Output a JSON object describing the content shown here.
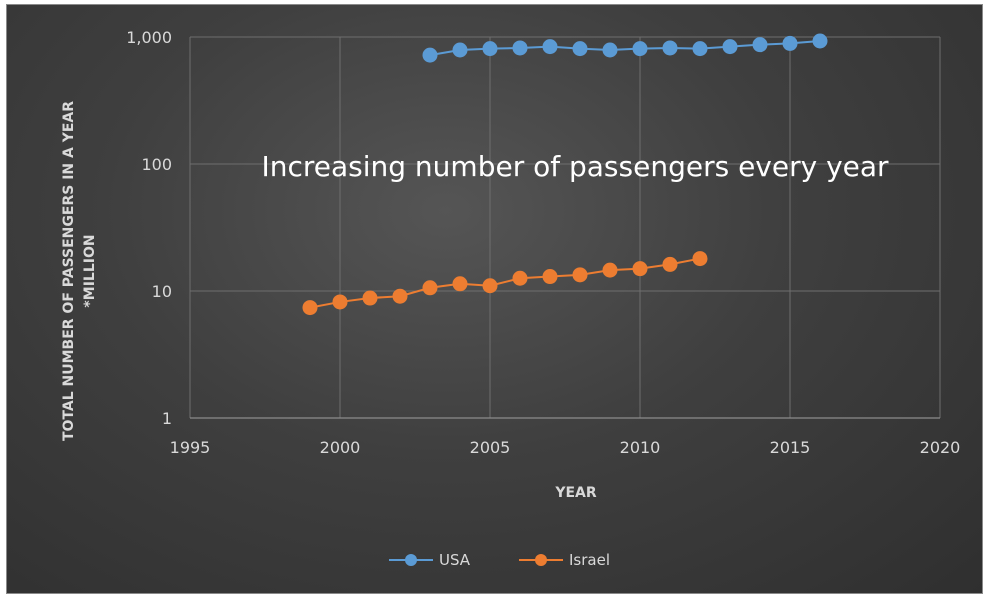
{
  "chart_data": {
    "type": "scatter",
    "xlabel": "YEAR",
    "ylabel_line1": "TOTAL NUMBER OF PASSENGERS IN A YEAR",
    "ylabel_line2": "*MILLION",
    "annotation": "Increasing number of passengers  every year",
    "xlim": [
      1995,
      2020
    ],
    "ylim": [
      1,
      1000
    ],
    "y_scale": "log",
    "grid": true,
    "legend_position": "bottom",
    "x_ticks": [
      "1995",
      "2000",
      "2005",
      "2010",
      "2015",
      "2020"
    ],
    "y_ticks": [
      "1",
      "10",
      "100",
      "1,000"
    ],
    "series": [
      {
        "name": "USA",
        "color": "#5b9bd5",
        "x": [
          2003,
          2004,
          2005,
          2006,
          2007,
          2008,
          2009,
          2010,
          2011,
          2012,
          2013,
          2014,
          2015,
          2016
        ],
        "y": [
          720,
          790,
          810,
          820,
          840,
          810,
          790,
          810,
          820,
          810,
          840,
          870,
          890,
          930
        ]
      },
      {
        "name": "Israel",
        "color": "#ed7d31",
        "x": [
          1999,
          2000,
          2001,
          2002,
          2003,
          2004,
          2005,
          2006,
          2007,
          2008,
          2009,
          2010,
          2011,
          2012
        ],
        "y": [
          7.4,
          8.2,
          8.8,
          9.1,
          10.6,
          11.4,
          11.0,
          12.6,
          13.0,
          13.4,
          14.6,
          15.0,
          16.2,
          18.0
        ]
      }
    ]
  }
}
